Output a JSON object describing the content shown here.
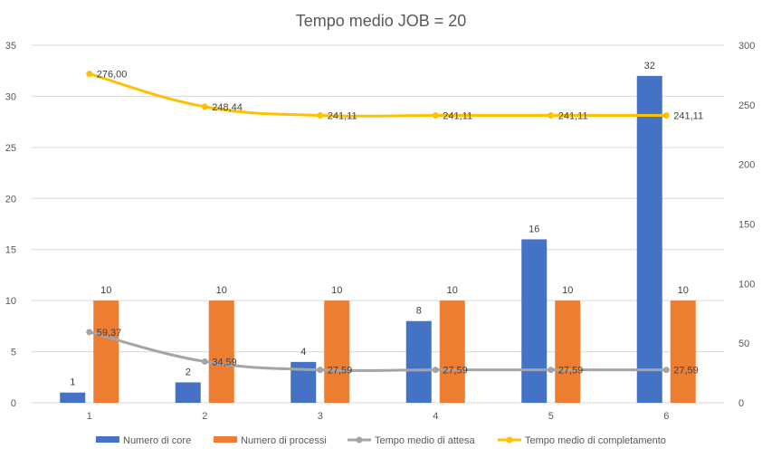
{
  "chart_data": {
    "type": "bar",
    "title": "Tempo medio JOB = 20",
    "categories": [
      "1",
      "2",
      "3",
      "4",
      "5",
      "6"
    ],
    "y_left": {
      "ticks": [
        "0",
        "5",
        "10",
        "15",
        "20",
        "25",
        "30",
        "35"
      ],
      "lim": [
        0,
        35
      ]
    },
    "y_right": {
      "ticks": [
        "0",
        "50",
        "100",
        "150",
        "200",
        "250",
        "300"
      ],
      "lim": [
        0,
        300
      ]
    },
    "grid": true,
    "legend_position": "bottom",
    "series": [
      {
        "name": "Numero di core",
        "kind": "bar",
        "axis": "left",
        "color": "#4472c4",
        "values": [
          1,
          2,
          4,
          8,
          16,
          32
        ],
        "labels": [
          "1",
          "2",
          "4",
          "8",
          "16",
          "32"
        ]
      },
      {
        "name": "Numero di processi",
        "kind": "bar",
        "axis": "left",
        "color": "#ed7d31",
        "values": [
          10,
          10,
          10,
          10,
          10,
          10
        ],
        "labels": [
          "10",
          "10",
          "10",
          "10",
          "10",
          "10"
        ]
      },
      {
        "name": "Tempo medio di attesa",
        "kind": "line",
        "axis": "right",
        "color": "#a5a5a5",
        "values": [
          59.37,
          34.59,
          27.59,
          27.59,
          27.59,
          27.59
        ],
        "labels": [
          "59,37",
          "34,59",
          "27,59",
          "27,59",
          "27,59",
          "27,59"
        ]
      },
      {
        "name": "Tempo medio di completamento",
        "kind": "line",
        "axis": "right",
        "color": "#ffc000",
        "values": [
          276.0,
          248.44,
          241.11,
          241.11,
          241.11,
          241.11
        ],
        "labels": [
          "276,00",
          "248,44",
          "241,11",
          "241,11",
          "241,11",
          "241,11"
        ]
      }
    ]
  }
}
